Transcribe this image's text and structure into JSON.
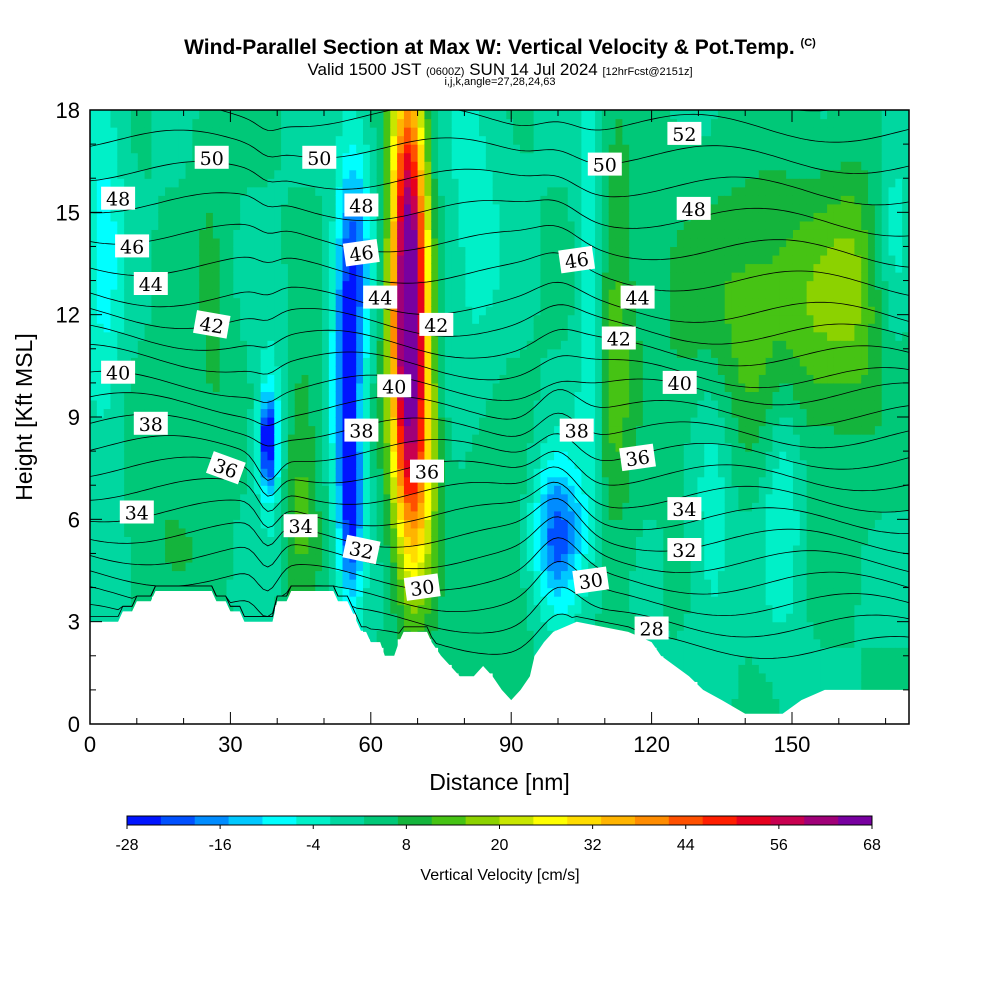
{
  "chart_data": {
    "type": "heatmap",
    "title": "Wind-Parallel Section at Max W: Vertical Velocity & Pot.Temp.",
    "title_mark": "(C)",
    "valid_prefix": "Valid 1500 JST",
    "valid_zulu": "(0600Z)",
    "valid_date": "SUN 14 Jul 2024",
    "valid_fcst": "[12hrFcst@2151z]",
    "subtitle": "i,j,k,angle=27,28,24,63",
    "xlabel": "Distance [nm]",
    "ylabel": "Height [Kft MSL]",
    "xlim": [
      0,
      175
    ],
    "ylim": [
      0,
      18
    ],
    "x_ticks": [
      "0",
      "30",
      "60",
      "90",
      "120",
      "150"
    ],
    "y_ticks": [
      "0",
      "3",
      "6",
      "9",
      "12",
      "15",
      "18"
    ],
    "x_tick_values": [
      0,
      30,
      60,
      90,
      120,
      150
    ],
    "y_tick_values": [
      0,
      3,
      6,
      9,
      12,
      15,
      18
    ],
    "colorbar": {
      "title": "Vertical Velocity [cm/s]",
      "labels": [
        "-28",
        "-16",
        "-4",
        "8",
        "20",
        "32",
        "44",
        "56",
        "68"
      ],
      "colors": [
        "#0014ff",
        "#0050ff",
        "#008cff",
        "#00c8ff",
        "#00ffff",
        "#00f0c8",
        "#00d7a0",
        "#00c878",
        "#14b43c",
        "#46c314",
        "#8cd200",
        "#c8e600",
        "#ffff00",
        "#ffdc00",
        "#ffb400",
        "#ff8c00",
        "#ff5000",
        "#ff1e00",
        "#e6001e",
        "#c80050",
        "#a00078",
        "#7800a0"
      ]
    },
    "terrain_kft": [
      [
        0,
        3.0
      ],
      [
        6,
        3.0
      ],
      [
        7,
        3.3
      ],
      [
        9,
        3.3
      ],
      [
        10,
        3.6
      ],
      [
        13,
        3.6
      ],
      [
        14,
        3.9
      ],
      [
        26,
        3.9
      ],
      [
        27,
        3.6
      ],
      [
        29,
        3.6
      ],
      [
        30,
        3.3
      ],
      [
        32,
        3.3
      ],
      [
        33,
        3.0
      ],
      [
        39,
        3.0
      ],
      [
        40,
        3.6
      ],
      [
        42,
        3.6
      ],
      [
        43,
        3.9
      ],
      [
        52,
        3.9
      ],
      [
        53,
        3.6
      ],
      [
        55,
        3.6
      ],
      [
        56,
        3.3
      ],
      [
        57,
        3.0
      ],
      [
        58,
        2.7
      ],
      [
        59,
        2.7
      ],
      [
        60,
        2.4
      ],
      [
        62,
        2.4
      ],
      [
        63,
        2.0
      ],
      [
        65,
        2.0
      ],
      [
        66,
        2.4
      ],
      [
        67,
        2.7
      ],
      [
        72,
        2.7
      ],
      [
        73,
        2.4
      ],
      [
        75,
        2.0
      ],
      [
        77,
        1.7
      ],
      [
        79,
        1.4
      ],
      [
        80,
        1.4
      ],
      [
        82,
        1.4
      ],
      [
        84,
        1.7
      ],
      [
        86,
        1.4
      ],
      [
        88,
        1.0
      ],
      [
        90,
        0.7
      ],
      [
        92,
        1.0
      ],
      [
        94,
        1.4
      ],
      [
        95,
        2.0
      ],
      [
        97,
        2.4
      ],
      [
        99,
        2.7
      ],
      [
        104,
        3.0
      ],
      [
        115,
        2.7
      ],
      [
        120,
        2.4
      ],
      [
        122,
        2.0
      ],
      [
        125,
        1.7
      ],
      [
        128,
        1.4
      ],
      [
        131,
        1.0
      ],
      [
        135,
        0.7
      ],
      [
        140,
        0.3
      ],
      [
        148,
        0.3
      ],
      [
        152,
        0.7
      ],
      [
        157,
        1.0
      ],
      [
        175,
        1.0
      ]
    ],
    "theta_levels": [
      28,
      30,
      32,
      34,
      36,
      38,
      40,
      42,
      44,
      46,
      48,
      50,
      52
    ],
    "theta_labels": [
      {
        "text": "50",
        "x": 26,
        "y": 16.6,
        "angle": 0
      },
      {
        "text": "50",
        "x": 49,
        "y": 16.6,
        "angle": 0
      },
      {
        "text": "50",
        "x": 110,
        "y": 16.4,
        "angle": 0
      },
      {
        "text": "52",
        "x": 127,
        "y": 17.3,
        "angle": 0
      },
      {
        "text": "48",
        "x": 6,
        "y": 15.4,
        "angle": 0
      },
      {
        "text": "48",
        "x": 58,
        "y": 15.2,
        "angle": 0
      },
      {
        "text": "48",
        "x": 129,
        "y": 15.1,
        "angle": 0
      },
      {
        "text": "46",
        "x": 9,
        "y": 14.0,
        "angle": 0
      },
      {
        "text": "46",
        "x": 58,
        "y": 13.8,
        "angle": 8
      },
      {
        "text": "46",
        "x": 104,
        "y": 13.6,
        "angle": 8
      },
      {
        "text": "44",
        "x": 13,
        "y": 12.9,
        "angle": 0
      },
      {
        "text": "44",
        "x": 62,
        "y": 12.5,
        "angle": 0
      },
      {
        "text": "44",
        "x": 117,
        "y": 12.5,
        "angle": 0
      },
      {
        "text": "42",
        "x": 26,
        "y": 11.7,
        "angle": -10
      },
      {
        "text": "42",
        "x": 74,
        "y": 11.7,
        "angle": 0
      },
      {
        "text": "42",
        "x": 113,
        "y": 11.3,
        "angle": 0
      },
      {
        "text": "40",
        "x": 6,
        "y": 10.3,
        "angle": 0
      },
      {
        "text": "40",
        "x": 65,
        "y": 9.9,
        "angle": 0
      },
      {
        "text": "40",
        "x": 126,
        "y": 10.0,
        "angle": 0
      },
      {
        "text": "38",
        "x": 13,
        "y": 8.8,
        "angle": 0
      },
      {
        "text": "38",
        "x": 58,
        "y": 8.6,
        "angle": 0
      },
      {
        "text": "38",
        "x": 104,
        "y": 8.6,
        "angle": 0
      },
      {
        "text": "36",
        "x": 29,
        "y": 7.5,
        "angle": -20
      },
      {
        "text": "36",
        "x": 72,
        "y": 7.4,
        "angle": 0
      },
      {
        "text": "36",
        "x": 117,
        "y": 7.8,
        "angle": 8
      },
      {
        "text": "34",
        "x": 10,
        "y": 6.2,
        "angle": 0
      },
      {
        "text": "34",
        "x": 45,
        "y": 5.8,
        "angle": 0
      },
      {
        "text": "34",
        "x": 127,
        "y": 6.3,
        "angle": 0
      },
      {
        "text": "32",
        "x": 58,
        "y": 5.1,
        "angle": -12
      },
      {
        "text": "32",
        "x": 127,
        "y": 5.1,
        "angle": 0
      },
      {
        "text": "30",
        "x": 71,
        "y": 4.0,
        "angle": 8
      },
      {
        "text": "30",
        "x": 107,
        "y": 4.2,
        "angle": 8
      },
      {
        "text": "28",
        "x": 120,
        "y": 2.8,
        "angle": 0
      }
    ],
    "w_features": [
      {
        "x": 68,
        "z": 13.5,
        "sx": 2.6,
        "sz": 4.2,
        "w": 60
      },
      {
        "x": 69,
        "z": 9.5,
        "sx": 3.2,
        "sz": 3.5,
        "w": 25
      },
      {
        "x": 70,
        "z": 6.5,
        "sx": 3.0,
        "sz": 2.5,
        "w": 12
      },
      {
        "x": 55,
        "z": 10.0,
        "sx": 2.2,
        "sz": 3.5,
        "w": -26
      },
      {
        "x": 56,
        "z": 6.0,
        "sx": 1.8,
        "sz": 2.0,
        "w": -16
      },
      {
        "x": 57,
        "z": 14.0,
        "sx": 2.5,
        "sz": 2.5,
        "w": -14
      },
      {
        "x": 38,
        "z": 8.3,
        "sx": 1.3,
        "sz": 1.0,
        "w": -28
      },
      {
        "x": 39,
        "z": 8.5,
        "sx": 2.5,
        "sz": 2.5,
        "w": -8
      },
      {
        "x": 100,
        "z": 5.5,
        "sx": 4.0,
        "sz": 1.6,
        "w": -26
      },
      {
        "x": 107,
        "z": 13.0,
        "sx": 2.0,
        "sz": 4.0,
        "w": -12
      },
      {
        "x": 112,
        "z": 11.0,
        "sx": 3.0,
        "sz": 4.5,
        "w": 10
      },
      {
        "x": 3,
        "z": 14.0,
        "sx": 3.0,
        "sz": 4.5,
        "w": -10
      },
      {
        "x": 45,
        "z": 7.0,
        "sx": 3.0,
        "sz": 3.0,
        "w": 10
      },
      {
        "x": 150,
        "z": 12.0,
        "sx": 18.0,
        "sz": 2.8,
        "w": 13
      },
      {
        "x": 163,
        "z": 13.5,
        "sx": 4.0,
        "sz": 2.0,
        "w": 6
      },
      {
        "x": 82,
        "z": 15.0,
        "sx": 5.0,
        "sz": 4.0,
        "w": -6
      },
      {
        "x": 133,
        "z": 6.5,
        "sx": 3.0,
        "sz": 3.0,
        "w": -8
      },
      {
        "x": 148,
        "z": 7.0,
        "sx": 3.0,
        "sz": 3.0,
        "w": -10
      },
      {
        "x": 172,
        "z": 14.0,
        "sx": 3.0,
        "sz": 3.0,
        "w": -9
      },
      {
        "x": 16,
        "z": 6.0,
        "sx": 6.0,
        "sz": 2.5,
        "w": 4
      },
      {
        "x": 88,
        "z": 5.0,
        "sx": 6.0,
        "sz": 2.5,
        "w": 6
      },
      {
        "x": 26,
        "z": 12.0,
        "sx": 3.0,
        "sz": 5.0,
        "w": 5
      }
    ]
  }
}
